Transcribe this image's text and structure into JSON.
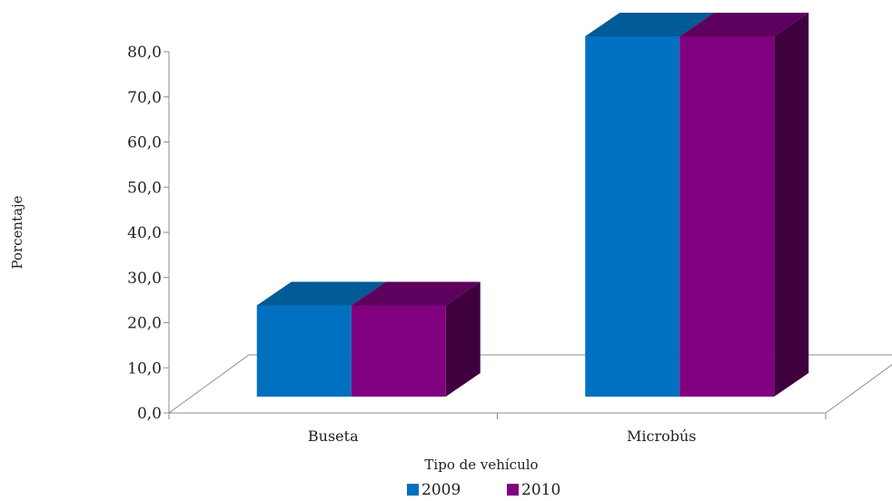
{
  "chart_data": {
    "type": "bar",
    "categories": [
      "Buseta",
      "Microbús"
    ],
    "series": [
      {
        "name": "2009",
        "values": [
          20.2,
          79.8
        ],
        "color": "#0070c0",
        "top_color": "#005a96",
        "side_color": "#003d66"
      },
      {
        "name": "2010",
        "values": [
          20.2,
          79.8
        ],
        "color": "#800080",
        "top_color": "#5e005e",
        "side_color": "#3f003f"
      }
    ],
    "xlabel": "Tipo de vehículo",
    "ylabel": "Porcentaje",
    "ylim": [
      0,
      80
    ],
    "yticks": [
      "0,0",
      "10,0",
      "20,0",
      "30,0",
      "40,0",
      "50,0",
      "60,0",
      "70,0",
      "80,0"
    ],
    "legend_position": "bottom",
    "grid": false,
    "style": "3d-column"
  }
}
